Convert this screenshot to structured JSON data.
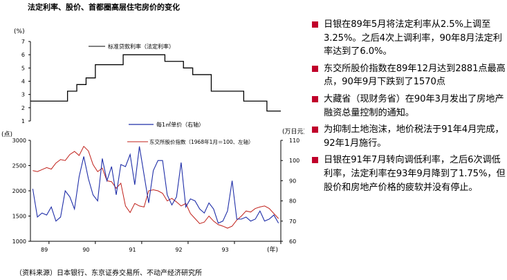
{
  "page": {
    "title": "法定利率、股价、首都圈高层住宅房价的变化",
    "source": "（资料来源）日本银行、东京证券交易所、不动产经济研究所"
  },
  "bullets": [
    "日银在89年5月将法定利率从2.5%上调至3.25%。之后4次上调利率，90年8月法定利率达到了6.0%。",
    "东交所股价指数在89年12月达到2881点最高点，90年9月下跌到了1570点",
    "大藏省（现财务省）在90年3月发出了房地产融资总量控制的通知。",
    "为抑制土地泡沫，地价税法于91年4月完成，92年1月施行。",
    "日银在91年7月转向调低利率，之后6次调低利率，法定利率在93年9月降到了1.75%，但股价和房地产价格的疲软并没有停止。"
  ],
  "colors": {
    "bullet": "#c0002a",
    "rate": "#000000",
    "price": "#1f2ea8",
    "stock": "#c0201a"
  },
  "chart_data": [
    {
      "type": "line",
      "title": "",
      "ylabel": "(%)",
      "ylim": [
        1,
        7
      ],
      "yticks": [
        1,
        2,
        3,
        4,
        5,
        6,
        7
      ],
      "grid": false,
      "legend_position": "top-center",
      "series": [
        {
          "name": "标准贷款利率（法定利率）",
          "step": true,
          "x": [
            1988.6,
            1989.4,
            1989.6,
            1989.8,
            1990.0,
            1990.2,
            1990.6,
            1991.5,
            1991.9,
            1992.1,
            1992.5,
            1993.2,
            1993.7,
            1994.0
          ],
          "values": [
            2.5,
            3.25,
            3.75,
            4.25,
            5.25,
            5.25,
            6.0,
            5.5,
            5.0,
            4.5,
            3.25,
            2.5,
            1.75,
            1.75
          ]
        }
      ]
    },
    {
      "type": "line",
      "xlabel": "(年)",
      "ylabel": "(点)",
      "ylabel_right": "(万日元)",
      "xlim": [
        1988.6,
        1994.0
      ],
      "xticks": [
        "89",
        "90",
        "91",
        "92",
        "93"
      ],
      "ylim": [
        1000,
        3000
      ],
      "yticks": [
        1000,
        1500,
        2000,
        2500,
        3000
      ],
      "ylim_right": [
        60,
        110
      ],
      "yticks_right": [
        60,
        70,
        80,
        90,
        100,
        110
      ],
      "grid": false,
      "legend_position": "top-right",
      "series": [
        {
          "name": "每1㎡单价（右轴）",
          "axis": "right",
          "x": [
            1988.65,
            1988.75,
            1988.85,
            1988.95,
            1989.05,
            1989.15,
            1989.25,
            1989.35,
            1989.45,
            1989.55,
            1989.65,
            1989.75,
            1989.85,
            1989.95,
            1990.05,
            1990.15,
            1990.25,
            1990.35,
            1990.45,
            1990.55,
            1990.65,
            1990.75,
            1990.85,
            1990.95,
            1991.05,
            1991.15,
            1991.25,
            1991.35,
            1991.45,
            1991.55,
            1991.65,
            1991.75,
            1991.85,
            1991.95,
            1992.05,
            1992.15,
            1992.25,
            1992.35,
            1992.45,
            1992.55,
            1992.65,
            1992.75,
            1992.85,
            1992.95,
            1993.05,
            1993.15,
            1993.25,
            1993.35,
            1993.45,
            1993.55,
            1993.65,
            1993.75,
            1993.85,
            1993.95
          ],
          "values": [
            86,
            72,
            74,
            73,
            77,
            70,
            72,
            85,
            82,
            76,
            92,
            102,
            91,
            83,
            80,
            101,
            90,
            97,
            83,
            98,
            97,
            103,
            88,
            107,
            93,
            79,
            95,
            100,
            100,
            83,
            78,
            82,
            99,
            77,
            81,
            80,
            76,
            74,
            79,
            76,
            69,
            70,
            75,
            90,
            71,
            71,
            72,
            70,
            71,
            75,
            70,
            71,
            73,
            69
          ]
        },
        {
          "name": "东交所股价指数（1968年1月＝100、左轴）",
          "axis": "left",
          "x": [
            1988.65,
            1988.75,
            1988.85,
            1988.95,
            1989.05,
            1989.15,
            1989.25,
            1989.35,
            1989.45,
            1989.55,
            1989.65,
            1989.75,
            1989.85,
            1989.95,
            1990.05,
            1990.15,
            1990.25,
            1990.35,
            1990.45,
            1990.55,
            1990.65,
            1990.75,
            1990.85,
            1990.95,
            1991.05,
            1991.15,
            1991.25,
            1991.35,
            1991.45,
            1991.55,
            1991.65,
            1991.75,
            1991.85,
            1991.95,
            1992.05,
            1992.15,
            1992.25,
            1992.35,
            1992.45,
            1992.55,
            1992.65,
            1992.75,
            1992.85,
            1992.95,
            1993.05,
            1993.15,
            1993.25,
            1993.35,
            1993.45,
            1993.55,
            1993.65,
            1993.75,
            1993.85,
            1993.95
          ],
          "values": [
            2400,
            2380,
            2420,
            2460,
            2430,
            2550,
            2620,
            2600,
            2720,
            2780,
            2700,
            2881,
            2790,
            2520,
            2380,
            2450,
            2200,
            2180,
            2050,
            2150,
            1700,
            1570,
            1750,
            1700,
            1680,
            2000,
            2020,
            2000,
            1950,
            1800,
            1850,
            1780,
            1700,
            1750,
            1550,
            1450,
            1350,
            1380,
            1500,
            1400,
            1330,
            1300,
            1260,
            1300,
            1420,
            1500,
            1600,
            1580,
            1650,
            1680,
            1700,
            1650,
            1550,
            1450
          ]
        }
      ]
    }
  ]
}
